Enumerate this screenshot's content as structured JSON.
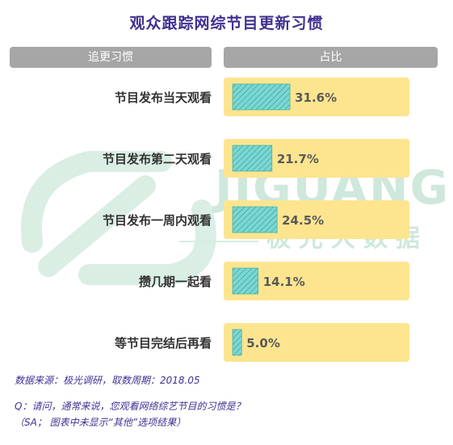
{
  "title": "观众跟踪网综节目更新习惯",
  "headers": {
    "left": "追更习惯",
    "right": "占比"
  },
  "watermark": {
    "english": "JIGUANG",
    "chinese": "极光大数据"
  },
  "notes": {
    "source": "数据来源：极光调研，取数周期：2018.05",
    "question": "Q：请问，通常来说，您观看网络综艺节目的习惯是？",
    "sa": "（SA； 图表中未显示“其他”选项结果）"
  },
  "colors": {
    "title": "#3f3192",
    "header_bg": "#a6a6a6",
    "row_bg": "#fde58f",
    "bar_fill": "#7dd6d2",
    "bar_hatch": "#2aa8a1",
    "watermark": "#cfe8dc"
  },
  "chart_data": {
    "type": "bar",
    "orientation": "horizontal",
    "categories": [
      "节目发布当天观看",
      "节目发布第二天观看",
      "节目发布一周内观看",
      "攒几期一起看",
      "等节目完结后再看"
    ],
    "values": [
      31.6,
      21.7,
      24.5,
      14.1,
      5.0
    ],
    "value_labels": [
      "31.6%",
      "21.7%",
      "24.5%",
      "14.1%",
      "5.0%"
    ],
    "unit": "%",
    "title": "观众跟踪网综节目更新习惯",
    "xlabel": "",
    "ylabel": "",
    "xlim": [
      0,
      100
    ]
  }
}
